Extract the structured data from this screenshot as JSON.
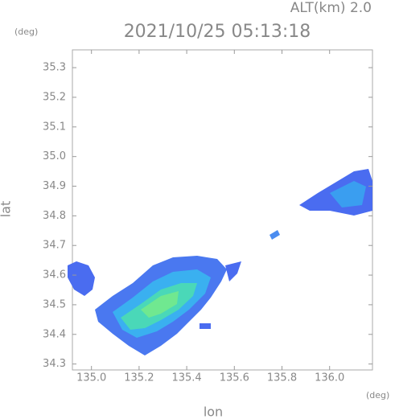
{
  "chart_data": {
    "type": "radar-map",
    "title": "2021/10/25 05:13:18",
    "altitude_label": "ALT(km) 2.0",
    "y_unit": "(deg)",
    "x_unit": "(deg)",
    "xlabel": "lon",
    "ylabel": "lat",
    "xlim": [
      134.92,
      136.18
    ],
    "xticks": [
      {
        "value": 135.0,
        "label": "135.0"
      },
      135.2,
      135.4,
      135.6,
      135.8,
      {
        "value": 136.0,
        "label": "136.0"
      }
    ],
    "ylim": [
      34.28,
      35.36
    ],
    "yticks": [
      34.3,
      34.4,
      34.5,
      34.6,
      34.7,
      34.8,
      34.9,
      {
        "value": 35.0,
        "label": "35.0"
      },
      35.1,
      35.2,
      35.3
    ]
  }
}
